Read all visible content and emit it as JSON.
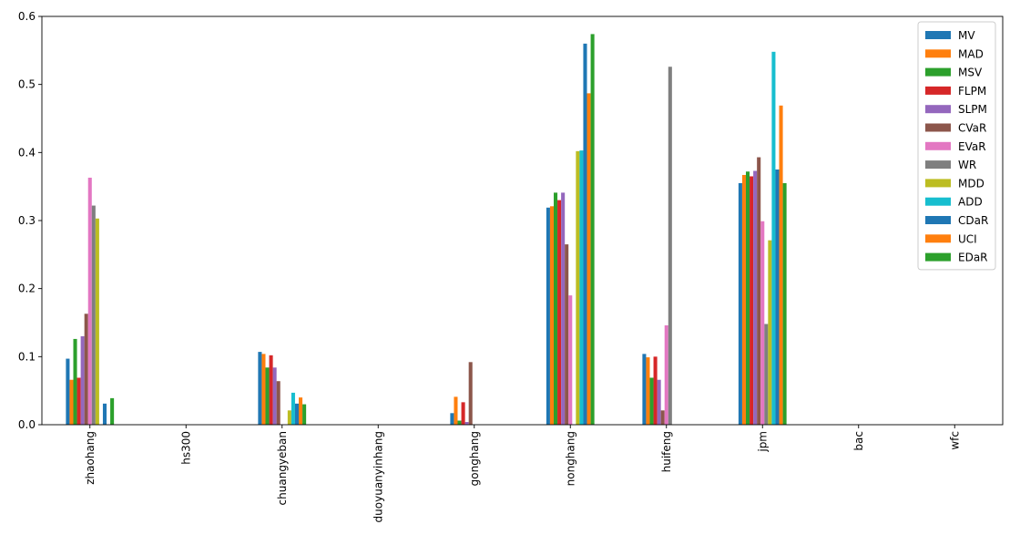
{
  "chart_data": {
    "type": "bar",
    "title": "",
    "xlabel": "",
    "ylabel": "",
    "ylim": [
      0,
      0.6
    ],
    "yticks": [
      "0.0",
      "0.1",
      "0.2",
      "0.3",
      "0.4",
      "0.5",
      "0.6"
    ],
    "categories": [
      "zhaohang",
      "hs300",
      "chuangyeban",
      "duoyuanyinhang",
      "gonghang",
      "nonghang",
      "huifeng",
      "jpm",
      "bac",
      "wfc"
    ],
    "legend_position": "top-right",
    "grid": false,
    "series": [
      {
        "name": "MV",
        "color": "#1f77b4",
        "values": [
          0.097,
          0.0,
          0.107,
          0.0,
          0.017,
          0.319,
          0.104,
          0.355,
          0.0,
          0.0
        ]
      },
      {
        "name": "MAD",
        "color": "#ff7f0e",
        "values": [
          0.066,
          0.0,
          0.104,
          0.0,
          0.041,
          0.321,
          0.099,
          0.367,
          0.0,
          0.0
        ]
      },
      {
        "name": "MSV",
        "color": "#2ca02c",
        "values": [
          0.126,
          0.0,
          0.084,
          0.0,
          0.006,
          0.341,
          0.069,
          0.372,
          0.0,
          0.0
        ]
      },
      {
        "name": "FLPM",
        "color": "#d62728",
        "values": [
          0.069,
          0.0,
          0.102,
          0.0,
          0.033,
          0.33,
          0.1,
          0.365,
          0.0,
          0.0
        ]
      },
      {
        "name": "SLPM",
        "color": "#9467bd",
        "values": [
          0.13,
          0.0,
          0.084,
          0.0,
          0.004,
          0.341,
          0.066,
          0.373,
          0.0,
          0.0
        ]
      },
      {
        "name": "CVaR",
        "color": "#8c564b",
        "values": [
          0.163,
          0.0,
          0.064,
          0.0,
          0.092,
          0.265,
          0.021,
          0.393,
          0.0,
          0.0
        ]
      },
      {
        "name": "EVaR",
        "color": "#e377c2",
        "values": [
          0.363,
          0.0,
          0.0,
          0.0,
          0.0,
          0.19,
          0.146,
          0.299,
          0.0,
          0.0
        ]
      },
      {
        "name": "WR",
        "color": "#7f7f7f",
        "values": [
          0.322,
          0.0,
          0.0,
          0.0,
          0.0,
          0.0,
          0.526,
          0.148,
          0.0,
          0.0
        ]
      },
      {
        "name": "MDD",
        "color": "#bcbd22",
        "values": [
          0.303,
          0.0,
          0.021,
          0.0,
          0.0,
          0.402,
          0.0,
          0.271,
          0.0,
          0.0
        ]
      },
      {
        "name": "ADD",
        "color": "#17becf",
        "values": [
          0.0,
          0.0,
          0.047,
          0.0,
          0.0,
          0.403,
          0.0,
          0.548,
          0.0,
          0.0
        ]
      },
      {
        "name": "CDaR",
        "color": "#1f77b4",
        "values": [
          0.031,
          0.0,
          0.031,
          0.0,
          0.0,
          0.56,
          0.0,
          0.375,
          0.0,
          0.0
        ]
      },
      {
        "name": "UCI",
        "color": "#ff7f0e",
        "values": [
          0.0,
          0.0,
          0.04,
          0.0,
          0.0,
          0.487,
          0.0,
          0.469,
          0.0,
          0.0
        ]
      },
      {
        "name": "EDaR",
        "color": "#2ca02c",
        "values": [
          0.039,
          0.0,
          0.03,
          0.0,
          0.0,
          0.574,
          0.0,
          0.355,
          0.0,
          0.0
        ]
      }
    ]
  }
}
